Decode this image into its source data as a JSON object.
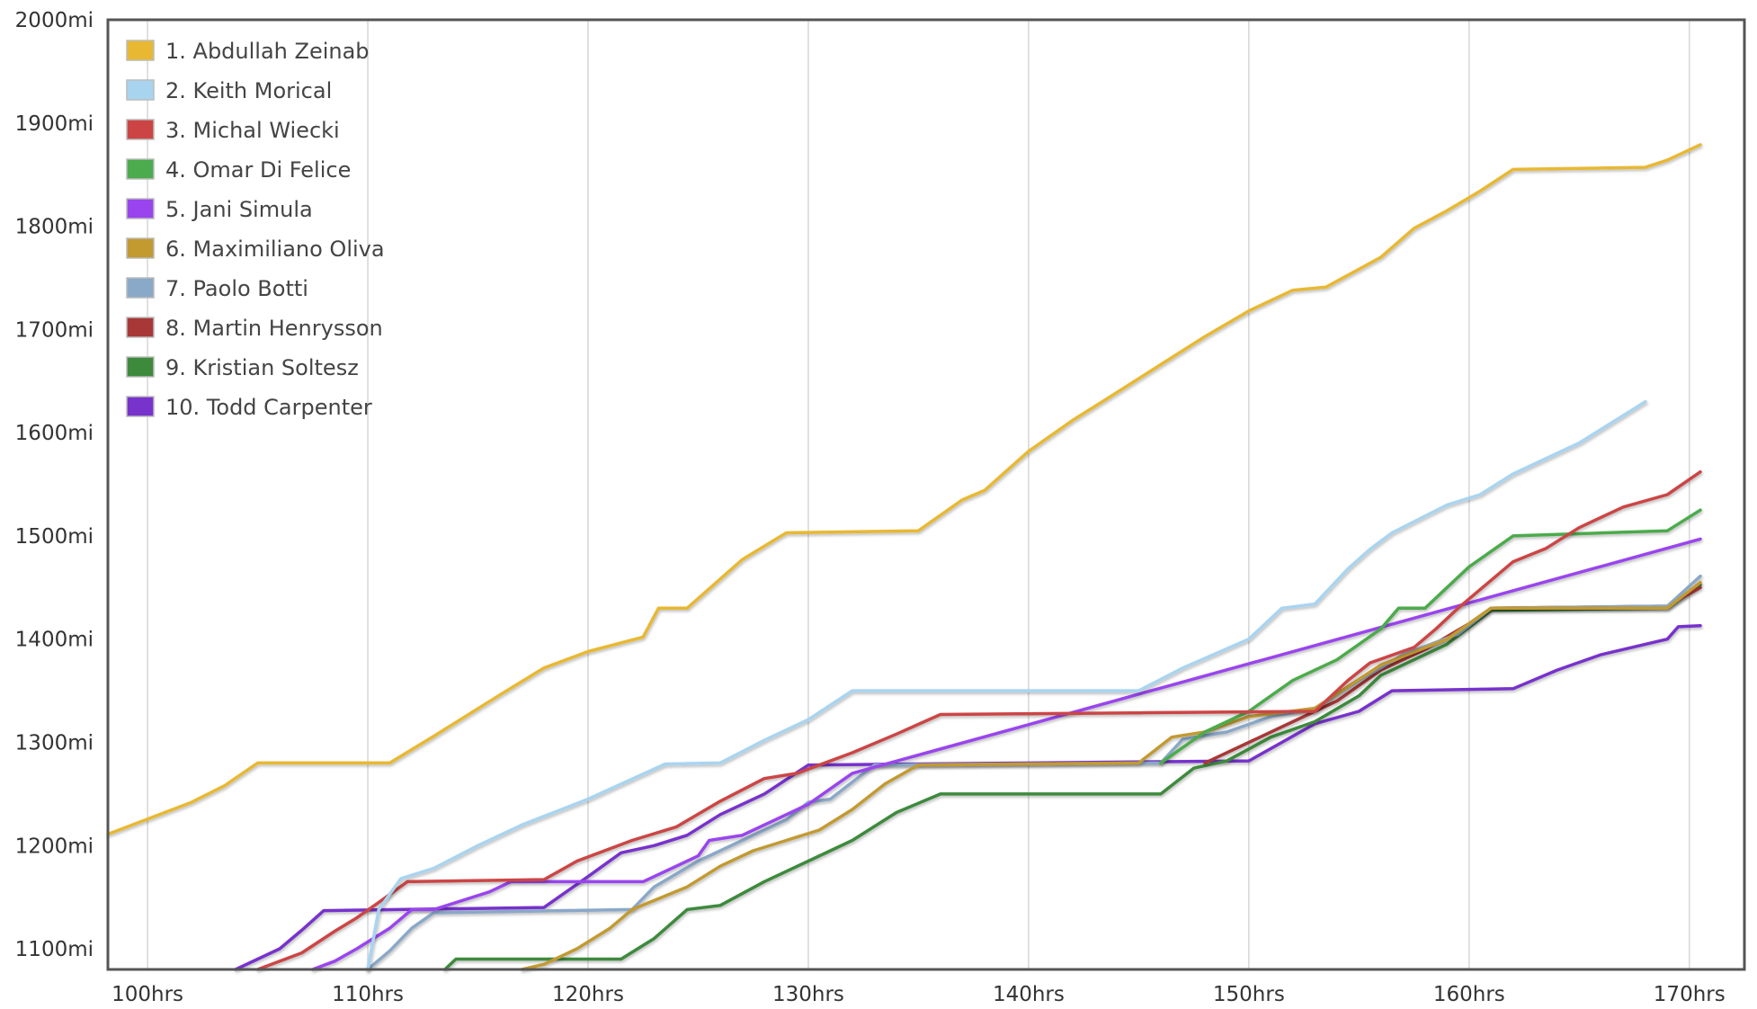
{
  "chart_data": {
    "type": "line",
    "title": "",
    "xlabel": "",
    "ylabel": "",
    "xlim": [
      98.2,
      172.5
    ],
    "ylim": [
      1080,
      2000
    ],
    "grid": true,
    "legend_position": "top-left",
    "x_ticks": [
      {
        "value": 100,
        "label": "100hrs"
      },
      {
        "value": 110,
        "label": "110hrs"
      },
      {
        "value": 120,
        "label": "120hrs"
      },
      {
        "value": 130,
        "label": "130hrs"
      },
      {
        "value": 140,
        "label": "140hrs"
      },
      {
        "value": 150,
        "label": "150hrs"
      },
      {
        "value": 160,
        "label": "160hrs"
      },
      {
        "value": 170,
        "label": "170hrs"
      }
    ],
    "y_ticks": [
      {
        "value": 1100,
        "label": "1100mi"
      },
      {
        "value": 1200,
        "label": "1200mi"
      },
      {
        "value": 1300,
        "label": "1300mi"
      },
      {
        "value": 1400,
        "label": "1400mi"
      },
      {
        "value": 1500,
        "label": "1500mi"
      },
      {
        "value": 1600,
        "label": "1600mi"
      },
      {
        "value": 1700,
        "label": "1700mi"
      },
      {
        "value": 1800,
        "label": "1800mi"
      },
      {
        "value": 1900,
        "label": "1900mi"
      },
      {
        "value": 2000,
        "label": "2000mi"
      }
    ],
    "series": [
      {
        "name": "1. Abdullah Zeinab",
        "color": "#e8b832",
        "points": [
          [
            98.2,
            1211
          ],
          [
            102,
            1242
          ],
          [
            103.5,
            1258
          ],
          [
            105,
            1280
          ],
          [
            111,
            1280
          ],
          [
            113,
            1306
          ],
          [
            116,
            1346
          ],
          [
            118,
            1372
          ],
          [
            120,
            1388
          ],
          [
            122.5,
            1402
          ],
          [
            123.2,
            1430
          ],
          [
            124.5,
            1430
          ],
          [
            127,
            1477
          ],
          [
            129,
            1503
          ],
          [
            135,
            1505
          ],
          [
            137,
            1535
          ],
          [
            138,
            1544
          ],
          [
            140,
            1582
          ],
          [
            142,
            1612
          ],
          [
            143.5,
            1632
          ],
          [
            146,
            1666
          ],
          [
            148,
            1693
          ],
          [
            150,
            1718
          ],
          [
            152,
            1738
          ],
          [
            153.5,
            1741
          ],
          [
            156,
            1770
          ],
          [
            157.5,
            1798
          ],
          [
            159,
            1815
          ],
          [
            160.5,
            1834
          ],
          [
            162,
            1855
          ],
          [
            168,
            1857
          ],
          [
            169,
            1864
          ],
          [
            170.5,
            1879
          ]
        ]
      },
      {
        "name": "2. Keith Morical",
        "color": "#a8d4f0",
        "points": [
          [
            110,
            1080
          ],
          [
            110.5,
            1138
          ],
          [
            111.5,
            1168
          ],
          [
            113,
            1178
          ],
          [
            115,
            1200
          ],
          [
            117,
            1220
          ],
          [
            120,
            1245
          ],
          [
            123.5,
            1279
          ],
          [
            126,
            1280
          ],
          [
            128,
            1302
          ],
          [
            130,
            1322
          ],
          [
            131.5,
            1343
          ],
          [
            132,
            1350
          ],
          [
            145,
            1350
          ],
          [
            147,
            1372
          ],
          [
            150,
            1400
          ],
          [
            151.5,
            1430
          ],
          [
            153,
            1434
          ],
          [
            154.5,
            1468
          ],
          [
            155.5,
            1487
          ],
          [
            156.5,
            1503
          ],
          [
            159,
            1530
          ],
          [
            160.5,
            1540
          ],
          [
            162,
            1560
          ],
          [
            165,
            1590
          ],
          [
            168,
            1630
          ]
        ]
      },
      {
        "name": "3. Michal Wiecki",
        "color": "#cc4444",
        "points": [
          [
            105,
            1080
          ],
          [
            107,
            1096
          ],
          [
            108.5,
            1117
          ],
          [
            109.5,
            1130
          ],
          [
            110.5,
            1145
          ],
          [
            111.8,
            1165
          ],
          [
            118,
            1167
          ],
          [
            119.5,
            1185
          ],
          [
            122,
            1205
          ],
          [
            124,
            1218
          ],
          [
            126,
            1243
          ],
          [
            128,
            1265
          ],
          [
            129.5,
            1270
          ],
          [
            130.5,
            1278
          ],
          [
            132,
            1290
          ],
          [
            134,
            1308
          ],
          [
            136,
            1327
          ],
          [
            153,
            1330
          ],
          [
            154.5,
            1360
          ],
          [
            155.5,
            1377
          ],
          [
            157.5,
            1392
          ],
          [
            158.5,
            1410
          ],
          [
            159.5,
            1430
          ],
          [
            160.5,
            1448
          ],
          [
            162,
            1475
          ],
          [
            163.5,
            1488
          ],
          [
            165,
            1508
          ],
          [
            167,
            1528
          ],
          [
            169,
            1540
          ],
          [
            170.5,
            1562
          ]
        ]
      },
      {
        "name": "4. Omar Di Felice",
        "color": "#4cab4c",
        "points": [
          [
            146,
            1280
          ],
          [
            148,
            1310
          ],
          [
            150,
            1330
          ],
          [
            152,
            1360
          ],
          [
            154,
            1380
          ],
          [
            156,
            1410
          ],
          [
            156.8,
            1430
          ],
          [
            158,
            1430
          ],
          [
            160,
            1470
          ],
          [
            162,
            1500
          ],
          [
            169,
            1505
          ],
          [
            170.5,
            1525
          ]
        ]
      },
      {
        "name": "5. Jani Simula",
        "color": "#9944ee",
        "points": [
          [
            107.5,
            1080
          ],
          [
            108.5,
            1088
          ],
          [
            109.5,
            1100
          ],
          [
            111,
            1120
          ],
          [
            112,
            1138
          ],
          [
            113,
            1138
          ],
          [
            115.5,
            1155
          ],
          [
            116.5,
            1165
          ],
          [
            122.5,
            1165
          ],
          [
            125,
            1190
          ],
          [
            125.5,
            1205
          ],
          [
            127,
            1210
          ],
          [
            130,
            1240
          ],
          [
            132,
            1270
          ],
          [
            170.5,
            1497
          ]
        ]
      },
      {
        "name": "6. Maximiliano Oliva",
        "color": "#c29a30",
        "points": [
          [
            117,
            1080
          ],
          [
            118,
            1085
          ],
          [
            119.5,
            1100
          ],
          [
            121,
            1120
          ],
          [
            122,
            1138
          ],
          [
            124.5,
            1160
          ],
          [
            126,
            1180
          ],
          [
            127.5,
            1195
          ],
          [
            129,
            1205
          ],
          [
            130.5,
            1215
          ],
          [
            132,
            1235
          ],
          [
            133.5,
            1260
          ],
          [
            135,
            1278
          ],
          [
            145,
            1280
          ],
          [
            146.5,
            1305
          ],
          [
            148,
            1310
          ],
          [
            150,
            1325
          ],
          [
            153,
            1333
          ],
          [
            156,
            1375
          ],
          [
            159,
            1400
          ],
          [
            161,
            1430
          ],
          [
            169,
            1430
          ],
          [
            170.5,
            1455
          ]
        ]
      },
      {
        "name": "7. Paolo Botti",
        "color": "#8aa8c8",
        "points": [
          [
            110,
            1080
          ],
          [
            111,
            1098
          ],
          [
            112,
            1120
          ],
          [
            113,
            1135
          ],
          [
            122,
            1138
          ],
          [
            123,
            1160
          ],
          [
            125,
            1185
          ],
          [
            127,
            1205
          ],
          [
            129,
            1225
          ],
          [
            130,
            1242
          ],
          [
            131,
            1245
          ],
          [
            133,
            1278
          ],
          [
            146,
            1280
          ],
          [
            147,
            1303
          ],
          [
            149,
            1310
          ],
          [
            151,
            1325
          ],
          [
            153,
            1333
          ],
          [
            155,
            1360
          ],
          [
            157,
            1385
          ],
          [
            159.5,
            1405
          ],
          [
            161,
            1430
          ],
          [
            169,
            1432
          ],
          [
            170.5,
            1461
          ]
        ]
      },
      {
        "name": "8. Martin Henrysson",
        "color": "#a83838",
        "points": [
          [
            148,
            1280
          ],
          [
            150,
            1300
          ],
          [
            152,
            1320
          ],
          [
            154,
            1340
          ],
          [
            156,
            1370
          ],
          [
            158,
            1390
          ],
          [
            160,
            1415
          ],
          [
            161,
            1430
          ],
          [
            169,
            1432
          ],
          [
            170.5,
            1450
          ]
        ]
      },
      {
        "name": "9. Kristian Soltesz",
        "color": "#3d8a3d",
        "points": [
          [
            113.5,
            1080
          ],
          [
            114,
            1090
          ],
          [
            121.5,
            1090
          ],
          [
            123,
            1110
          ],
          [
            124.5,
            1138
          ],
          [
            126,
            1142
          ],
          [
            128,
            1165
          ],
          [
            130,
            1185
          ],
          [
            132,
            1205
          ],
          [
            134,
            1232
          ],
          [
            136,
            1250
          ],
          [
            146,
            1250
          ],
          [
            147.5,
            1275
          ],
          [
            149,
            1282
          ],
          [
            151,
            1305
          ],
          [
            153,
            1320
          ],
          [
            155,
            1345
          ],
          [
            156,
            1365
          ],
          [
            159,
            1395
          ],
          [
            161,
            1428
          ],
          [
            169,
            1430
          ],
          [
            170.5,
            1453
          ]
        ]
      },
      {
        "name": "10. Todd Carpenter",
        "color": "#7733cc",
        "points": [
          [
            104,
            1080
          ],
          [
            106,
            1100
          ],
          [
            107,
            1118
          ],
          [
            108,
            1137
          ],
          [
            118,
            1140
          ],
          [
            120,
            1170
          ],
          [
            121.5,
            1193
          ],
          [
            123,
            1200
          ],
          [
            124.5,
            1210
          ],
          [
            126,
            1230
          ],
          [
            128,
            1250
          ],
          [
            130,
            1278
          ],
          [
            150,
            1282
          ],
          [
            151.5,
            1300
          ],
          [
            153,
            1318
          ],
          [
            155,
            1330
          ],
          [
            156.5,
            1350
          ],
          [
            162,
            1352
          ],
          [
            164,
            1370
          ],
          [
            166,
            1385
          ],
          [
            169,
            1400
          ],
          [
            169.5,
            1412
          ],
          [
            170.5,
            1413
          ]
        ]
      }
    ]
  }
}
